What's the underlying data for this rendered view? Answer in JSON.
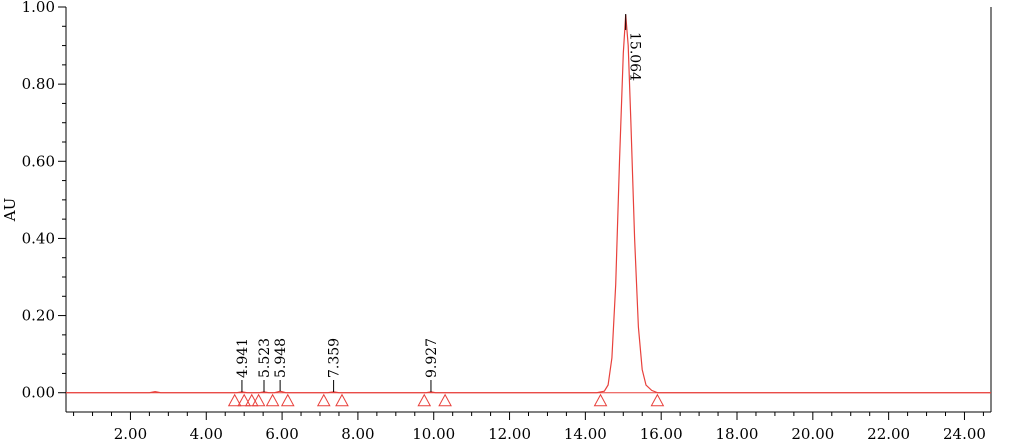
{
  "chart_data": {
    "type": "line",
    "title": "",
    "xlabel": "",
    "ylabel": "AU",
    "xlim": [
      0.3,
      24.7
    ],
    "ylim": [
      -0.05,
      1.0
    ],
    "x_ticks": [
      {
        "value": 2,
        "label": "2.00"
      },
      {
        "value": 4,
        "label": "4.00"
      },
      {
        "value": 6,
        "label": "6.00"
      },
      {
        "value": 8,
        "label": "8.00"
      },
      {
        "value": 10,
        "label": "10.00"
      },
      {
        "value": 12,
        "label": "12.00"
      },
      {
        "value": 14,
        "label": "14.00"
      },
      {
        "value": 16,
        "label": "16.00"
      },
      {
        "value": 18,
        "label": "18.00"
      },
      {
        "value": 20,
        "label": "20.00"
      },
      {
        "value": 22,
        "label": "22.00"
      },
      {
        "value": 24,
        "label": "24.00"
      }
    ],
    "y_ticks": [
      {
        "value": 0.0,
        "label": "0.00"
      },
      {
        "value": 0.2,
        "label": "0.20"
      },
      {
        "value": 0.4,
        "label": "0.40"
      },
      {
        "value": 0.6,
        "label": "0.60"
      },
      {
        "value": 0.8,
        "label": "0.80"
      },
      {
        "value": 1.0,
        "label": "1.00"
      }
    ],
    "grid": false,
    "trace_color": "#e8413c",
    "series": [
      {
        "x": [
          0.3,
          2.5,
          2.65,
          2.8,
          4.8,
          4.94,
          5.08,
          5.4,
          5.52,
          5.65,
          5.8,
          5.95,
          6.1,
          7.2,
          7.36,
          7.5,
          9.8,
          9.93,
          10.05,
          14.3,
          14.5,
          14.6,
          14.7,
          14.8,
          14.9,
          15.0,
          15.064,
          15.13,
          15.2,
          15.3,
          15.4,
          15.5,
          15.6,
          15.75,
          15.9,
          16.5,
          24.7
        ],
        "y": [
          0.0,
          0.0,
          0.003,
          0.0,
          0.0,
          0.002,
          0.0,
          0.0,
          0.002,
          0.0,
          0.0,
          0.004,
          0.0,
          0.0,
          0.002,
          0.0,
          0.0,
          0.002,
          0.0,
          0.0,
          0.004,
          0.02,
          0.09,
          0.28,
          0.6,
          0.88,
          0.98,
          0.9,
          0.7,
          0.4,
          0.17,
          0.06,
          0.02,
          0.006,
          0.0,
          0.0,
          0.0
        ]
      }
    ],
    "peaks": [
      {
        "label": "4.941",
        "x": 4.941
      },
      {
        "label": "5.523",
        "x": 5.523
      },
      {
        "label": "5.948",
        "x": 5.948
      },
      {
        "label": "7.359",
        "x": 7.359
      },
      {
        "label": "9.927",
        "x": 9.927
      },
      {
        "label": "15.064",
        "x": 15.064
      }
    ],
    "integration_markers": [
      4.75,
      5.0,
      5.2,
      5.38,
      5.75,
      6.15,
      7.1,
      7.58,
      9.75,
      10.3,
      14.4,
      15.9
    ]
  }
}
